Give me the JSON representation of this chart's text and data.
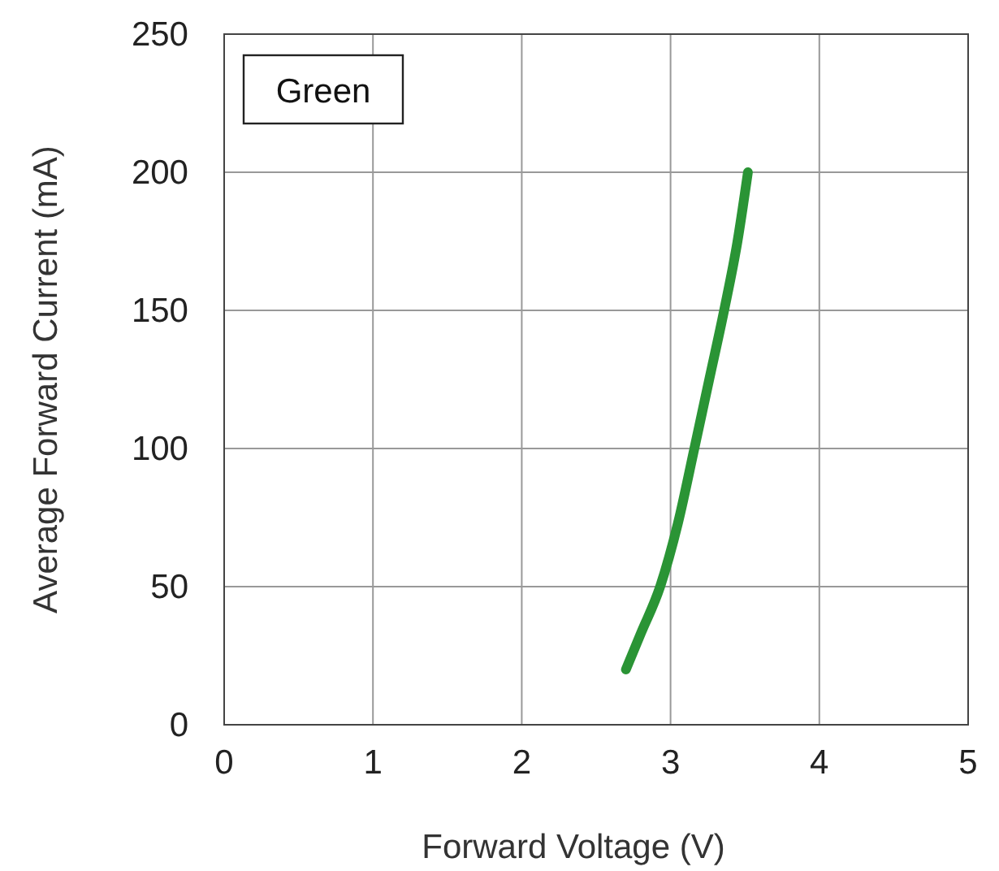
{
  "chart_data": {
    "type": "line",
    "xlabel": "Forward Voltage (V)",
    "ylabel": "Average Forward Current (mA)",
    "annotations": [
      "Green"
    ],
    "xlim": [
      0,
      5
    ],
    "xticks": [
      0,
      1,
      2,
      3,
      4,
      5
    ],
    "ylim": [
      0,
      250
    ],
    "yticks": [
      0,
      50,
      100,
      150,
      200,
      250
    ],
    "grid": true,
    "marker": "none",
    "line_style": "solid",
    "series": [
      {
        "color": "#2a9435",
        "x": [
          2.7,
          2.8,
          2.93,
          3.05,
          3.16,
          3.26,
          3.36,
          3.45,
          3.52
        ],
        "values": [
          20,
          33,
          50,
          73,
          100,
          125,
          150,
          175,
          200
        ]
      }
    ]
  }
}
